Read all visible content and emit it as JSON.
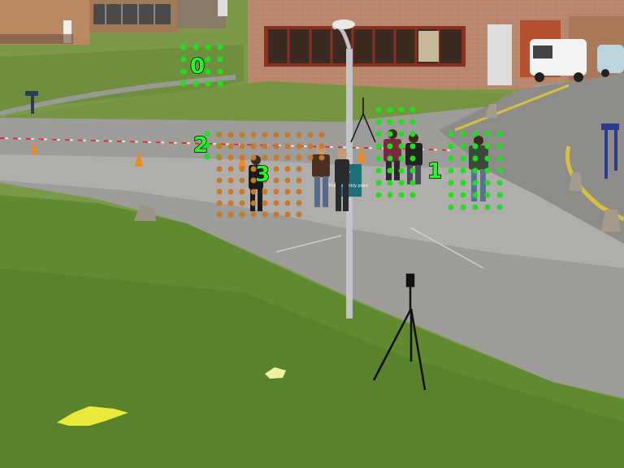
{
  "scene": {
    "sign_text": "Fire assembly point"
  },
  "tracking_markers": [
    {
      "id": "0",
      "color": "#22ff22"
    },
    {
      "id": "1",
      "color": "#22ff22"
    },
    {
      "id": "2",
      "color": "#22ff22"
    },
    {
      "id": "3",
      "color": "#22ff22"
    }
  ],
  "dot_colors": {
    "green": "#22dd22",
    "orange": "#c8782a"
  }
}
